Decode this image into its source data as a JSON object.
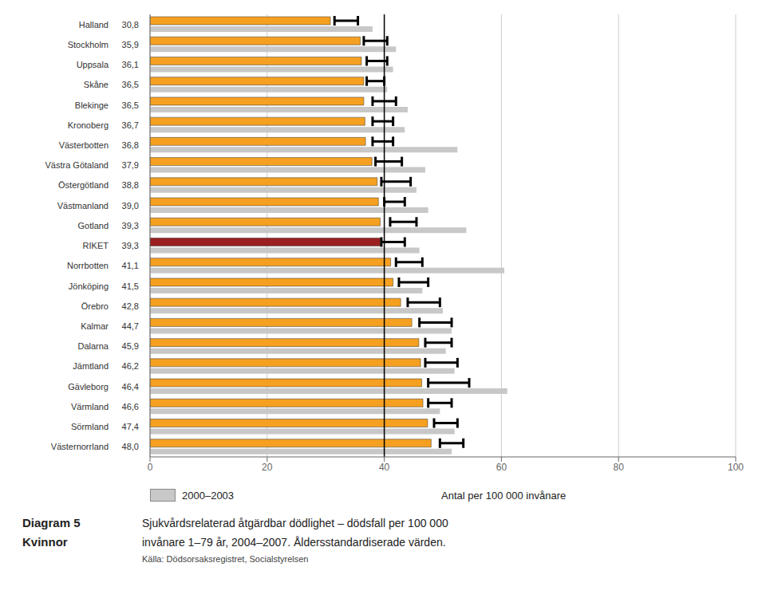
{
  "chart_data": {
    "type": "bar",
    "orientation": "horizontal",
    "title": "Diagram 5",
    "subtitle": "Kvinnor",
    "annotations": [
      "Sjukvårdsrelaterad åtgärdbar dödlighet – dödsfall per 100 000",
      "invånare 1–79 år, 2004–2007. Åldersstandardiserade värden.",
      "Källa: Dödsorsaksregistret, Socialstyrelsen"
    ],
    "xlabel": "Antal per 100 000 invånare",
    "categories": [
      "Halland",
      "Stockholm",
      "Uppsala",
      "Skåne",
      "Blekinge",
      "Kronoberg",
      "Västerbotten",
      "Västra Götaland",
      "Östergötland",
      "Västmanland",
      "Gotland",
      "RIKET",
      "Norrbotten",
      "Jönköping",
      "Örebro",
      "Kalmar",
      "Dalarna",
      "Jämtland",
      "Gävleborg",
      "Värmland",
      "Sörmland",
      "Västernorrland"
    ],
    "series": [
      {
        "values": [
          30.8,
          35.9,
          36.1,
          36.5,
          36.5,
          36.7,
          36.8,
          37.9,
          38.8,
          39.0,
          39.3,
          39.3,
          41.1,
          41.5,
          42.8,
          44.7,
          45.9,
          46.2,
          46.4,
          46.6,
          47.4,
          48.0
        ],
        "value_labels": [
          "30,8",
          "35,9",
          "36,1",
          "36,5",
          "36,5",
          "36,7",
          "36,8",
          "37,9",
          "38,8",
          "39,0",
          "39,3",
          "39,3",
          "41,1",
          "41,5",
          "42,8",
          "44,7",
          "45,9",
          "46,2",
          "46,4",
          "46,6",
          "47,4",
          "48,0"
        ],
        "ci_start": [
          31.5,
          36.5,
          37.0,
          37.0,
          38.0,
          38.0,
          38.0,
          38.5,
          39.5,
          40.0,
          41.0,
          39.5,
          42.0,
          42.5,
          44.0,
          46.0,
          47.0,
          47.0,
          47.5,
          47.5,
          48.5,
          49.5
        ],
        "ci_end": [
          35.5,
          40.5,
          40.5,
          40.0,
          42.0,
          41.5,
          41.5,
          43.0,
          44.5,
          43.5,
          45.5,
          43.5,
          46.5,
          47.5,
          49.5,
          51.5,
          51.5,
          52.5,
          54.5,
          51.5,
          52.5,
          53.5
        ],
        "colors": [
          "#F5A020",
          "#F5A020",
          "#F5A020",
          "#F5A020",
          "#F5A020",
          "#F5A020",
          "#F5A020",
          "#F5A020",
          "#F5A020",
          "#F5A020",
          "#F5A020",
          "#9B2020",
          "#F5A020",
          "#F5A020",
          "#F5A020",
          "#F5A020",
          "#F5A020",
          "#F5A020",
          "#F5A020",
          "#F5A020",
          "#F5A020",
          "#F5A020"
        ]
      },
      {
        "name": "2000–2003",
        "color": "#C8C8C8",
        "values": [
          38.0,
          42.0,
          41.5,
          40.5,
          44.0,
          43.5,
          52.5,
          47.0,
          45.5,
          47.5,
          54.0,
          46.0,
          60.5,
          46.5,
          50.0,
          51.5,
          50.5,
          52.0,
          61.0,
          49.5,
          52.0,
          51.5
        ]
      }
    ],
    "xlim": [
      0,
      100
    ],
    "xticks": [
      0,
      20,
      40,
      60,
      80,
      100
    ],
    "reference_line": 40,
    "grid": true
  }
}
